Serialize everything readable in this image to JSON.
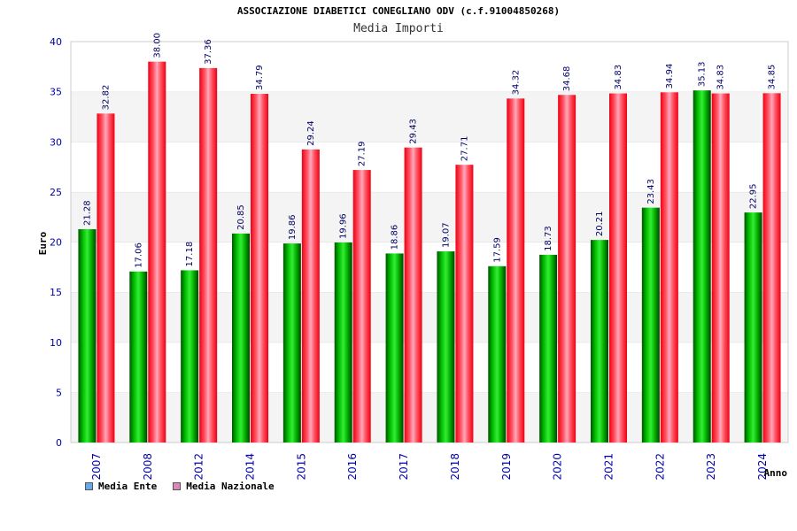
{
  "chart_data": {
    "type": "bar",
    "title": "ASSOCIAZIONE DIABETICI CONEGLIANO ODV (c.f.91004850268)",
    "subtitle": "Media Importi",
    "xlabel": "Anno",
    "ylabel": "Euro",
    "ylim": [
      0,
      40
    ],
    "yticks": [
      "0",
      "5",
      "10",
      "15",
      "20",
      "25",
      "30",
      "35",
      "40"
    ],
    "categories": [
      "2007",
      "2008",
      "2012",
      "2014",
      "2015",
      "2016",
      "2017",
      "2018",
      "2019",
      "2020",
      "2021",
      "2022",
      "2023",
      "2024"
    ],
    "series": [
      {
        "name": "Media Ente",
        "color": "#00aa00",
        "legend_color": "#66aaee",
        "values": [
          21.28,
          17.06,
          17.18,
          20.85,
          19.86,
          19.96,
          18.86,
          19.07,
          17.59,
          18.73,
          20.21,
          23.43,
          35.13,
          22.95
        ],
        "labels": [
          "21.28",
          "17.06",
          "17.18",
          "20.85",
          "19.86",
          "19.96",
          "18.86",
          "19.07",
          "17.59",
          "18.73",
          "20.21",
          "23.43",
          "35.13",
          "22.95"
        ]
      },
      {
        "name": "Media Nazionale",
        "color": "#ee1122",
        "legend_color": "#dd88bb",
        "values": [
          32.82,
          38.0,
          37.36,
          34.79,
          29.24,
          27.19,
          29.43,
          27.71,
          34.32,
          34.68,
          34.83,
          34.94,
          34.83,
          34.85
        ],
        "labels": [
          "32.82",
          "38.00",
          "37.36",
          "34.79",
          "29.24",
          "27.19",
          "29.43",
          "27.71",
          "34.32",
          "34.68",
          "34.83",
          "34.94",
          "34.83",
          "34.85"
        ]
      }
    ],
    "legend_position": "bottom-left",
    "grid": true
  }
}
